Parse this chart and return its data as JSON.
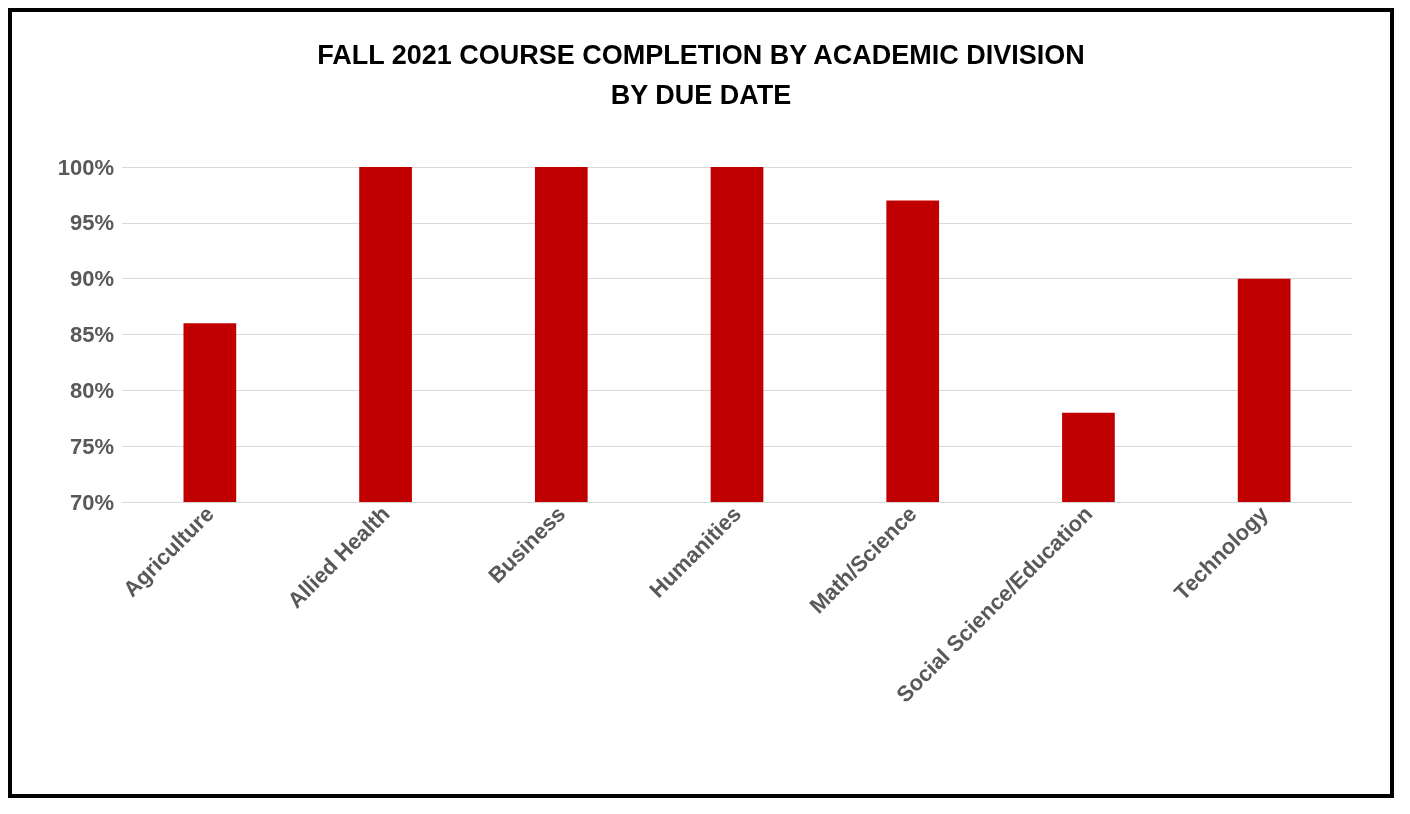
{
  "chart_data": {
    "type": "bar",
    "title": "FALL 2021 COURSE COMPLETION BY ACADEMIC DIVISION\nBY DUE DATE",
    "categories": [
      "Agriculture",
      "Allied Health",
      "Business",
      "Humanities",
      "Math/Science",
      "Social Science/Education",
      "Technology"
    ],
    "values": [
      86,
      100,
      100,
      100,
      97,
      78,
      90
    ],
    "color": "#c00000",
    "ylim": [
      70,
      100
    ],
    "yticks": [
      {
        "value": 70,
        "label": "70%"
      },
      {
        "value": 75,
        "label": "75%"
      },
      {
        "value": 80,
        "label": "80%"
      },
      {
        "value": 85,
        "label": "85%"
      },
      {
        "value": 90,
        "label": "90%"
      },
      {
        "value": 95,
        "label": "95%"
      },
      {
        "value": 100,
        "label": "100%"
      }
    ],
    "grid": "y"
  }
}
